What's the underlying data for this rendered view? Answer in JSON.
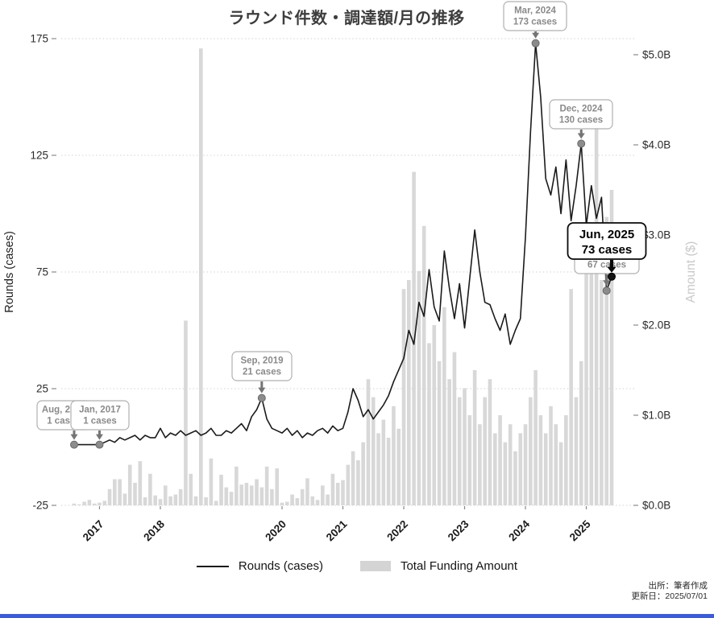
{
  "title": "ラウンド件数・調達額/月の推移",
  "left_axis": {
    "label": "Rounds (cases)",
    "ticks": [
      175,
      125,
      75,
      25,
      -25
    ],
    "tick_labels": [
      "175",
      "125",
      "75",
      "25",
      "-25"
    ]
  },
  "right_axis": {
    "label": "Amount ($)",
    "ticks": [
      {
        "label": "$5.0B",
        "value": 5.0
      },
      {
        "label": "$4.0B",
        "value": 4.0
      },
      {
        "label": "$3.0B",
        "value": 3.0
      },
      {
        "label": "$2.0B",
        "value": 2.0
      },
      {
        "label": "$1.0B",
        "value": 1.0
      },
      {
        "label": "$0.0B",
        "value": 0.0
      }
    ]
  },
  "x_axis": {
    "tick_labels": [
      "2017",
      "2018",
      "2020",
      "2021",
      "2022",
      "2023",
      "2024",
      "2025"
    ]
  },
  "legend": [
    {
      "label": "Rounds (cases)",
      "type": "line"
    },
    {
      "label": "Total Funding Amount",
      "type": "bar"
    }
  ],
  "footer": {
    "source": "出所：筆者作成",
    "updated": "更新日：2025/07/01"
  },
  "colors": {
    "line": "#1b1b1b",
    "bar": "#d8d8d8",
    "grid": "#d2d2d2",
    "tick_text": "#2b2b2b",
    "annotation_text": "#8a8a8a",
    "annotation_border": "#b0b0b0",
    "annotation_arrow": "#757575",
    "highlight": "#0a0a0a",
    "right_axis_label": "#c9c9c9",
    "accent_bottom_bar": "#3b5bdb"
  },
  "chart_data": {
    "type": "line+bar",
    "title": "ラウンド件数・調達額/月の推移",
    "left_ylabel": "Rounds (cases)",
    "right_ylabel": "Amount ($)",
    "left_ylim": [
      -25,
      175
    ],
    "right_ylim_billions": [
      0,
      5.2
    ],
    "grid": "dotted-horizontal",
    "legend_position": "bottom-center",
    "x": [
      "2016-08",
      "2016-09",
      "2016-10",
      "2016-11",
      "2016-12",
      "2017-01",
      "2017-02",
      "2017-03",
      "2017-04",
      "2017-05",
      "2017-06",
      "2017-07",
      "2017-08",
      "2017-09",
      "2017-10",
      "2017-11",
      "2017-12",
      "2018-01",
      "2018-02",
      "2018-03",
      "2018-04",
      "2018-05",
      "2018-06",
      "2018-07",
      "2018-08",
      "2018-09",
      "2018-10",
      "2018-11",
      "2018-12",
      "2019-01",
      "2019-02",
      "2019-03",
      "2019-04",
      "2019-05",
      "2019-06",
      "2019-07",
      "2019-08",
      "2019-09",
      "2019-10",
      "2019-11",
      "2019-12",
      "2020-01",
      "2020-02",
      "2020-03",
      "2020-04",
      "2020-05",
      "2020-06",
      "2020-07",
      "2020-08",
      "2020-09",
      "2020-10",
      "2020-11",
      "2020-12",
      "2021-01",
      "2021-02",
      "2021-03",
      "2021-04",
      "2021-05",
      "2021-06",
      "2021-07",
      "2021-08",
      "2021-09",
      "2021-10",
      "2021-11",
      "2021-12",
      "2022-01",
      "2022-02",
      "2022-03",
      "2022-04",
      "2022-05",
      "2022-06",
      "2022-07",
      "2022-08",
      "2022-09",
      "2022-10",
      "2022-11",
      "2022-12",
      "2023-01",
      "2023-02",
      "2023-03",
      "2023-04",
      "2023-05",
      "2023-06",
      "2023-07",
      "2023-08",
      "2023-09",
      "2023-10",
      "2023-11",
      "2023-12",
      "2024-01",
      "2024-02",
      "2024-03",
      "2024-04",
      "2024-05",
      "2024-06",
      "2024-07",
      "2024-08",
      "2024-09",
      "2024-10",
      "2024-11",
      "2024-12",
      "2025-01",
      "2025-02",
      "2025-03",
      "2025-04",
      "2025-05",
      "2025-06"
    ],
    "series": [
      {
        "name": "Rounds (cases)",
        "type": "line",
        "axis": "left",
        "unit": "cases",
        "values": [
          1,
          1,
          1,
          1,
          1,
          1,
          2,
          3,
          2,
          4,
          3,
          4,
          5,
          3,
          5,
          4,
          4,
          8,
          4,
          6,
          5,
          7,
          5,
          6,
          7,
          5,
          6,
          8,
          5,
          5,
          7,
          6,
          8,
          10,
          7,
          13,
          16,
          21,
          12,
          8,
          7,
          6,
          8,
          5,
          7,
          4,
          6,
          5,
          7,
          8,
          6,
          9,
          7,
          8,
          15,
          25,
          20,
          13,
          16,
          12,
          15,
          18,
          22,
          28,
          33,
          38,
          50,
          44,
          62,
          56,
          76,
          60,
          54,
          84,
          68,
          55,
          70,
          51,
          72,
          93,
          75,
          62,
          61,
          55,
          50,
          57,
          44,
          50,
          55,
          90,
          135,
          173,
          150,
          115,
          108,
          120,
          100,
          123,
          97,
          112,
          130,
          95,
          112,
          98,
          107,
          67,
          73
        ]
      },
      {
        "name": "Total Funding Amount",
        "type": "bar",
        "axis": "right",
        "unit": "$B",
        "values": [
          0.02,
          0.01,
          0.04,
          0.06,
          0.02,
          0.03,
          0.05,
          0.18,
          0.29,
          0.29,
          0.13,
          0.45,
          0.25,
          0.49,
          0.09,
          0.35,
          0.11,
          0.07,
          0.22,
          0.1,
          0.12,
          0.18,
          2.05,
          0.35,
          0.1,
          5.07,
          0.09,
          0.52,
          0.05,
          0.34,
          0.2,
          0.15,
          0.43,
          0.23,
          0.25,
          0.22,
          0.29,
          0.2,
          0.43,
          0.18,
          0.41,
          0.03,
          0.04,
          0.12,
          0.08,
          0.18,
          0.3,
          0.1,
          0.06,
          0.22,
          0.12,
          0.35,
          0.25,
          0.28,
          0.45,
          0.6,
          0.5,
          0.7,
          1.4,
          1.2,
          0.8,
          0.95,
          0.75,
          1.1,
          0.85,
          2.4,
          2.5,
          3.7,
          2.6,
          3.1,
          1.8,
          2.0,
          1.6,
          2.2,
          1.4,
          1.7,
          1.2,
          1.3,
          1.0,
          1.5,
          0.9,
          1.2,
          1.4,
          0.8,
          1.0,
          0.7,
          0.9,
          0.6,
          0.8,
          0.9,
          1.2,
          1.5,
          1.0,
          0.8,
          1.1,
          0.9,
          0.7,
          1.0,
          2.4,
          1.2,
          1.6,
          2.6,
          2.8,
          4.2,
          2.5,
          3.2,
          3.5
        ]
      }
    ],
    "annotations": [
      {
        "line1": "Aug, 2016",
        "line2": "1 cases",
        "month": "2016-08",
        "value": 1,
        "style": "default"
      },
      {
        "line1": "Jan, 2017",
        "line2": "1 cases",
        "month": "2017-01",
        "value": 1,
        "style": "default"
      },
      {
        "line1": "Sep, 2019",
        "line2": "21 cases",
        "month": "2019-09",
        "value": 21,
        "style": "default"
      },
      {
        "line1": "Mar, 2024",
        "line2": "173 cases",
        "month": "2024-03",
        "value": 173,
        "style": "default"
      },
      {
        "line1": "Dec, 2024",
        "line2": "130 cases",
        "month": "2024-12",
        "value": 130,
        "style": "default"
      },
      {
        "line1": "May, 2025",
        "line2": "67 cases",
        "month": "2025-05",
        "value": 67,
        "style": "default"
      },
      {
        "line1": "Jun, 2025",
        "line2": "73 cases",
        "month": "2025-06",
        "value": 73,
        "style": "highlight"
      }
    ]
  }
}
